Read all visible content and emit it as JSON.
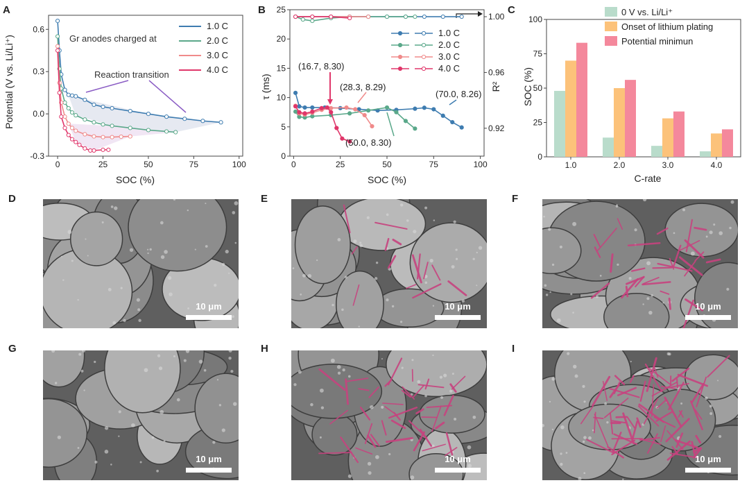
{
  "panel_labels": [
    "A",
    "B",
    "C",
    "D",
    "E",
    "F",
    "G",
    "H",
    "I"
  ],
  "scale_bar_label": "10 μm",
  "colors": {
    "c1": "#3e7cb0",
    "c2": "#5aa88a",
    "c3": "#f08a8a",
    "c4": "#e0366a",
    "bar_green": "#b9dccb",
    "bar_orange": "#fcc27a",
    "bar_pink": "#f4889c",
    "plating": "#c7427e"
  },
  "chart_data": [
    {
      "type": "line",
      "panel": "A",
      "xlabel": "SOC (%)",
      "ylabel": "Potential (V vs. Li/Li⁺)",
      "xlim": [
        -5,
        102
      ],
      "ylim": [
        -0.3,
        0.7
      ],
      "xticks": [
        0,
        25,
        50,
        75,
        100
      ],
      "yticks": [
        -0.3,
        0.0,
        0.3,
        0.6
      ],
      "ytick_labels": [
        "-0.3",
        "0.0",
        "0.3",
        "0.6"
      ],
      "legend_title": "Gr anodes charged at",
      "annotation": "Reaction transition",
      "series": [
        {
          "name": "1.0 C",
          "color": "#3e7cb0",
          "x": [
            0,
            1,
            2,
            4,
            6,
            8,
            10,
            15,
            20,
            25,
            30,
            40,
            50,
            60,
            70,
            80,
            90
          ],
          "y": [
            0.66,
            0.45,
            0.28,
            0.17,
            0.135,
            0.13,
            0.125,
            0.1,
            0.065,
            0.05,
            0.04,
            0.02,
            0.0,
            -0.02,
            -0.035,
            -0.05,
            -0.06
          ]
        },
        {
          "name": "2.0 C",
          "color": "#5aa88a",
          "x": [
            0,
            1,
            2,
            4,
            6,
            8,
            10,
            15,
            20,
            25,
            30,
            40,
            50,
            60,
            65
          ],
          "y": [
            0.55,
            0.32,
            0.18,
            0.08,
            0.04,
            0.01,
            -0.01,
            -0.04,
            -0.06,
            -0.075,
            -0.085,
            -0.1,
            -0.115,
            -0.125,
            -0.13
          ]
        },
        {
          "name": "3.0 C",
          "color": "#f08a8a",
          "x": [
            0,
            1,
            2,
            4,
            6,
            8,
            10,
            15,
            20,
            25,
            30,
            35,
            40
          ],
          "y": [
            0.48,
            0.22,
            0.08,
            -0.02,
            -0.07,
            -0.1,
            -0.12,
            -0.145,
            -0.16,
            -0.165,
            -0.165,
            -0.162,
            -0.16
          ]
        },
        {
          "name": "4.0 C",
          "color": "#e0366a",
          "x": [
            0,
            1,
            2,
            4,
            6,
            8,
            10,
            12,
            15,
            18,
            20,
            25,
            28
          ],
          "y": [
            0.45,
            0.15,
            -0.02,
            -0.1,
            -0.15,
            -0.18,
            -0.2,
            -0.22,
            -0.245,
            -0.26,
            -0.26,
            -0.255,
            -0.255
          ]
        }
      ]
    },
    {
      "type": "line",
      "panel": "B",
      "xlabel": "SOC (%)",
      "ylabel": "τ (ms)",
      "ylabel_right": "R²",
      "xlim": [
        -2,
        102
      ],
      "ylim": [
        0,
        25
      ],
      "ylim_right": [
        0.9,
        1.005
      ],
      "xticks": [
        0,
        25,
        50,
        75,
        100
      ],
      "yticks": [
        0,
        5,
        10,
        15,
        20,
        25
      ],
      "yticks_right": [
        0.92,
        0.96,
        1.0
      ],
      "ytick_right_labels": [
        "0.92",
        "0.96",
        "1.00"
      ],
      "annotations": [
        "(16.7, 8.30)",
        "(28.3, 8.29)",
        "(70.0, 8.26)",
        "(50.0, 8.30)"
      ],
      "series": [
        {
          "name": "1.0 C",
          "axis": "left",
          "color": "#3e7cb0",
          "x": [
            1,
            3,
            6,
            10,
            16.7,
            25,
            35,
            45,
            55,
            65,
            70,
            75,
            80,
            85,
            90
          ],
          "y": [
            10.8,
            8.5,
            8.3,
            8.3,
            8.3,
            8.2,
            8.0,
            7.8,
            7.9,
            8.1,
            8.26,
            8.0,
            6.9,
            5.8,
            4.9
          ]
        },
        {
          "name": "2.0 C",
          "axis": "left",
          "color": "#5aa88a",
          "x": [
            1,
            3,
            6,
            10,
            20,
            30,
            40,
            50,
            55,
            60,
            65
          ],
          "y": [
            7.6,
            6.7,
            6.6,
            6.8,
            7.0,
            7.3,
            7.8,
            8.3,
            7.5,
            6.0,
            4.7
          ]
        },
        {
          "name": "3.0 C",
          "axis": "left",
          "color": "#f08a8a",
          "x": [
            1,
            3,
            6,
            10,
            15,
            20,
            28.3,
            33,
            38,
            42
          ],
          "y": [
            8.6,
            7.3,
            7.1,
            7.4,
            7.9,
            8.2,
            8.29,
            8.0,
            7.0,
            5.1
          ]
        },
        {
          "name": "4.0 C",
          "axis": "left",
          "color": "#e0366a",
          "x": [
            1,
            3,
            6,
            10,
            15,
            18,
            20,
            23,
            26,
            30
          ],
          "y": [
            8.5,
            7.5,
            7.3,
            7.6,
            8.2,
            8.3,
            7.5,
            4.8,
            3.0,
            2.5
          ]
        },
        {
          "name": "1.0 C",
          "axis": "right",
          "color": "#3e7cb0",
          "x": [
            1,
            10,
            20,
            30,
            40,
            50,
            60,
            70,
            80,
            90
          ],
          "y": [
            1.0,
            1.0,
            1.0,
            1.0,
            1.0,
            1.0,
            1.0,
            1.0,
            1.0,
            1.0
          ]
        },
        {
          "name": "2.0 C",
          "axis": "right",
          "color": "#5aa88a",
          "x": [
            1,
            5,
            10,
            20,
            30,
            40,
            50,
            60,
            65
          ],
          "y": [
            1.0,
            0.998,
            0.997,
            0.999,
            1.0,
            1.0,
            1.0,
            1.0,
            1.0
          ]
        },
        {
          "name": "3.0 C",
          "axis": "right",
          "color": "#f08a8a",
          "x": [
            1,
            10,
            20,
            30,
            40
          ],
          "y": [
            1.0,
            1.0,
            1.0,
            1.0,
            1.0
          ]
        },
        {
          "name": "4.0 C",
          "axis": "right",
          "color": "#e0366a",
          "x": [
            1,
            10,
            20,
            30
          ],
          "y": [
            1.0,
            1.0,
            1.0,
            0.999
          ]
        }
      ]
    },
    {
      "type": "bar",
      "panel": "C",
      "xlabel": "C-rate",
      "ylabel": "SOC (%)",
      "ylim": [
        0,
        100
      ],
      "yticks": [
        0,
        25,
        50,
        75,
        100
      ],
      "categories": [
        "1.0",
        "2.0",
        "3.0",
        "4.0"
      ],
      "series": [
        {
          "name": "0 V vs. Li/Li⁺",
          "color": "#b9dccb",
          "values": [
            48,
            14,
            8,
            4
          ]
        },
        {
          "name": "Onset of lithium plating",
          "color": "#fcc27a",
          "values": [
            70,
            50,
            28,
            17
          ]
        },
        {
          "name": "Potential minimun",
          "color": "#f4889c",
          "values": [
            83,
            56,
            33,
            20
          ]
        }
      ]
    }
  ],
  "sem_images": [
    {
      "panel": "D",
      "plating": 0
    },
    {
      "panel": "E",
      "plating": 0.2
    },
    {
      "panel": "F",
      "plating": 0.45
    },
    {
      "panel": "G",
      "plating": 0
    },
    {
      "panel": "H",
      "plating": 0.6
    },
    {
      "panel": "I",
      "plating": 1.0
    }
  ]
}
